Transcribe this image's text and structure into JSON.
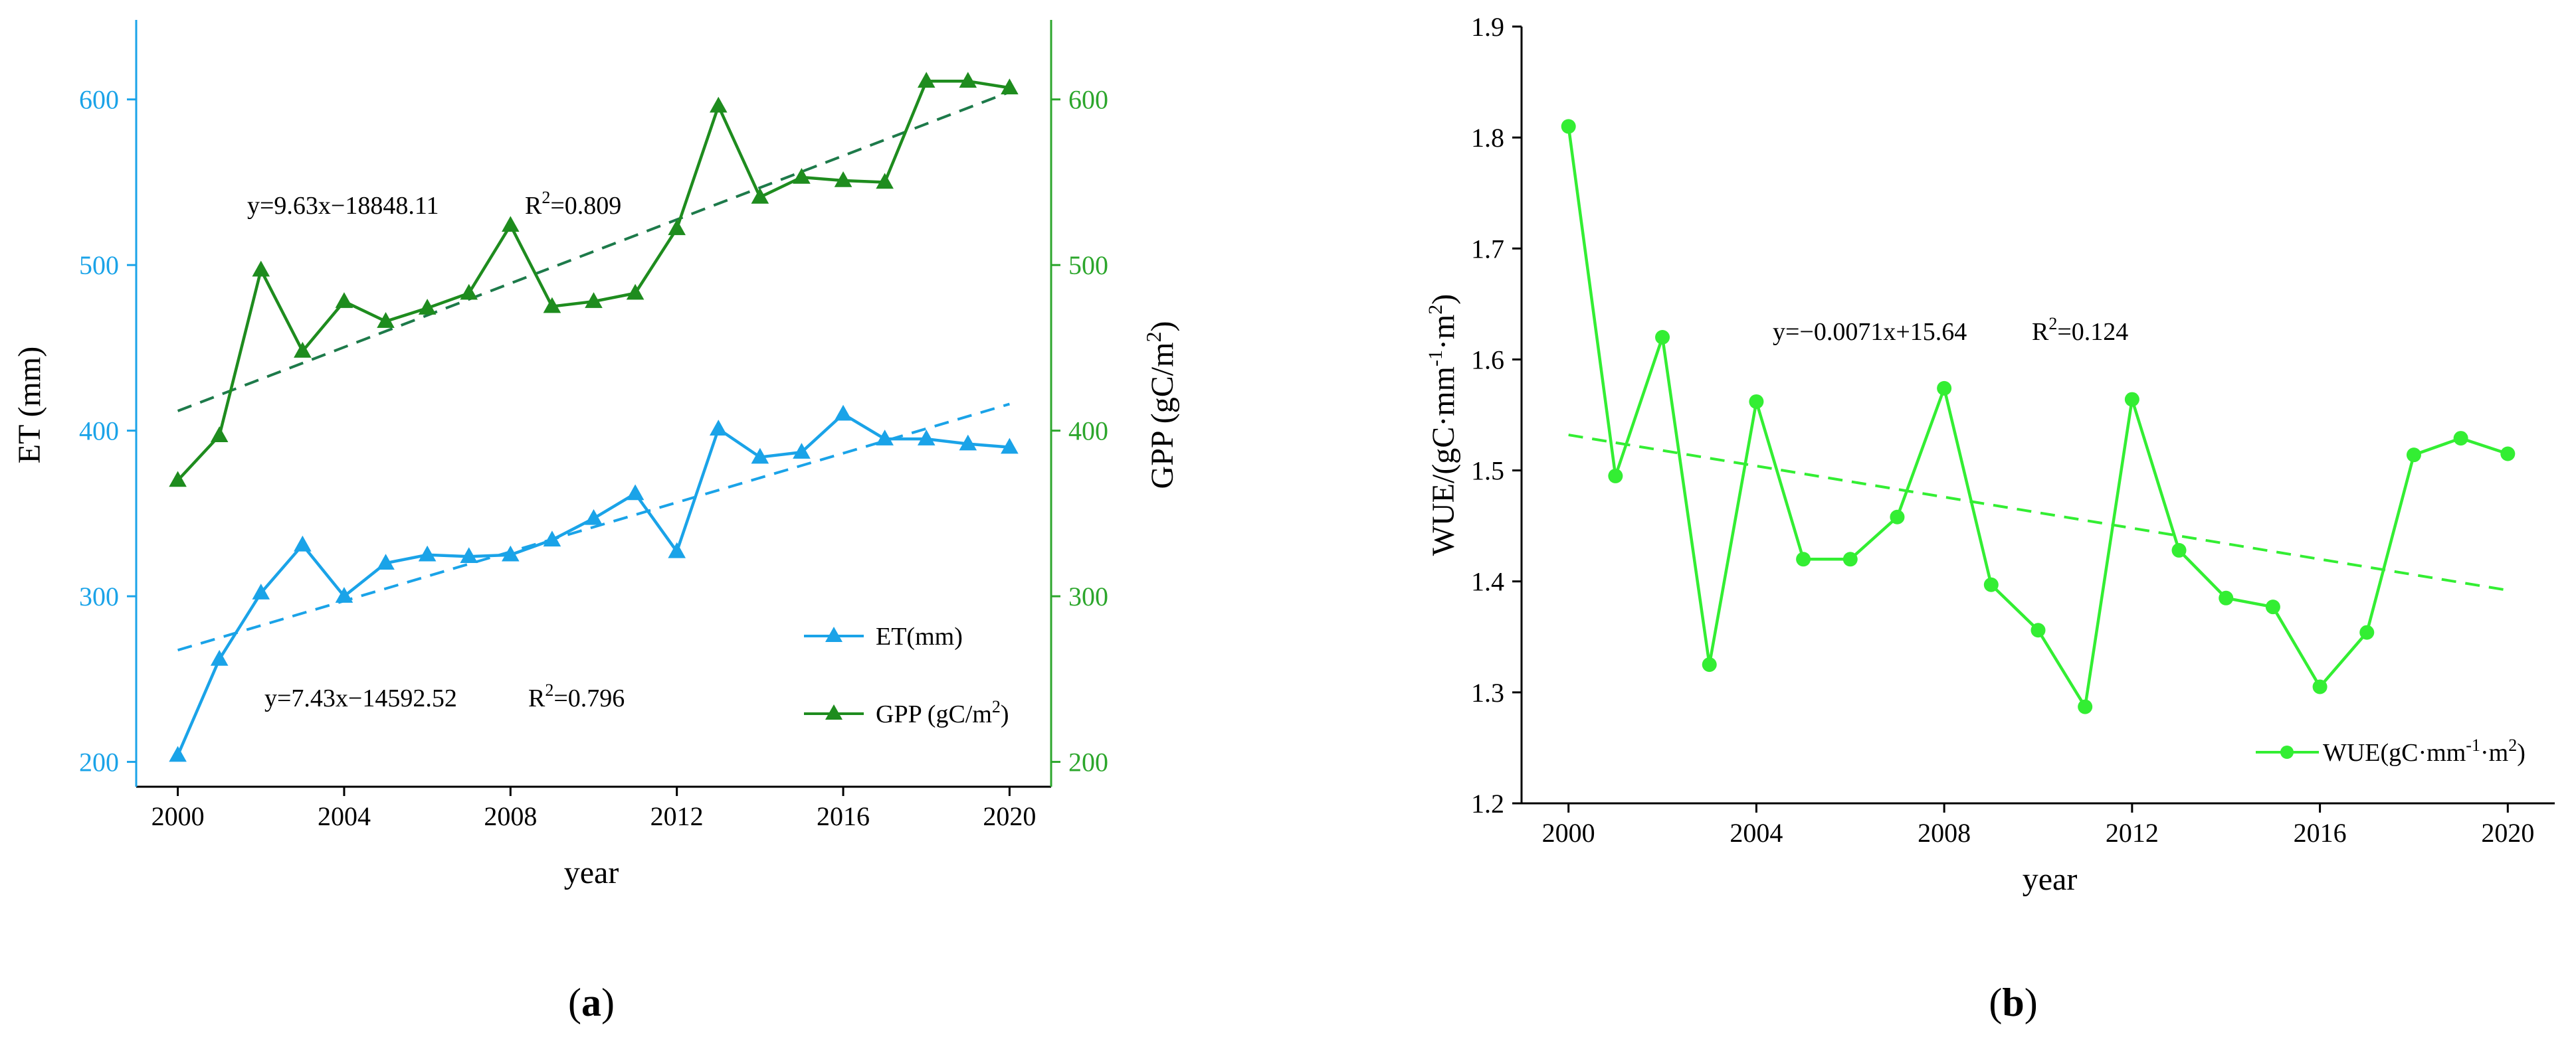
{
  "colors": {
    "et": "#1aa3e8",
    "gpp": "#1e8c1e",
    "gpp_axis": "#2ca62c",
    "gpp_trend": "#1d7a4a",
    "wue": "#33ee33",
    "axis": "#000000"
  },
  "panel_a": {
    "label_prefix": "(",
    "label_letter": "a",
    "label_suffix": ")",
    "x_title": "year",
    "y_left_title": "ET (mm)",
    "y_right_title": "GPP (gC/m",
    "y_right_title_sup": "2",
    "y_right_title_end": ")",
    "annot_gpp_eq": "y=9.63x−18848.11",
    "annot_gpp_r2": "R",
    "annot_gpp_r2_sup": "2",
    "annot_gpp_r2_val": "=0.809",
    "annot_et_eq": "y=7.43x−14592.52",
    "annot_et_r2": "R",
    "annot_et_r2_sup": "2",
    "annot_et_r2_val": "=0.796",
    "legend_et": "ET(mm)",
    "legend_gpp": "GPP (gC/m",
    "legend_gpp_sup": "2",
    "legend_gpp_end": ")"
  },
  "panel_b": {
    "label_prefix": "(",
    "label_letter": "b",
    "label_suffix": ")",
    "x_title": "year",
    "y_title": "WUE/(gC·mm",
    "y_title_sup1": "-1",
    "y_title_mid": "·m",
    "y_title_sup2": "2",
    "y_title_end": ")",
    "annot_eq": "y=−0.0071x+15.64",
    "annot_r2": "R",
    "annot_r2_sup": "2",
    "annot_r2_val": "=0.124",
    "legend": "WUE(gC·mm",
    "legend_sup1": "-1",
    "legend_mid": "·m",
    "legend_sup2": "2",
    "legend_end": ")"
  },
  "chart_data": [
    {
      "type": "line",
      "x": [
        2000,
        2001,
        2002,
        2003,
        2004,
        2005,
        2006,
        2007,
        2008,
        2009,
        2010,
        2011,
        2012,
        2013,
        2014,
        2015,
        2016,
        2017,
        2018,
        2019,
        2020
      ],
      "x_ticks": [
        2000,
        2004,
        2008,
        2012,
        2016,
        2020
      ],
      "xlim": [
        1999,
        2021
      ],
      "xlabel": "year",
      "series": [
        {
          "name": "ET(mm)",
          "axis": "left",
          "marker": "triangle",
          "values": [
            204,
            262,
            302,
            331,
            300,
            320,
            325,
            324,
            325,
            334,
            347,
            362,
            327,
            401,
            384,
            387,
            410,
            395,
            395,
            392,
            390
          ]
        },
        {
          "name": "GPP (gC/m2)",
          "axis": "right",
          "marker": "triangle",
          "values": [
            370,
            397,
            497,
            448,
            478,
            466,
            474,
            483,
            524,
            475,
            478,
            483,
            522,
            596,
            541,
            553,
            551,
            550,
            611,
            611,
            607
          ]
        }
      ],
      "trendlines": [
        {
          "series": "ET(mm)",
          "axis": "left",
          "slope": 7.43,
          "intercept": -14592.52,
          "r2": 0.796
        },
        {
          "series": "GPP (gC/m2)",
          "axis": "right",
          "slope": 9.63,
          "intercept": -18848.11,
          "r2": 0.809
        }
      ],
      "y_left": {
        "label": "ET (mm)",
        "ticks": [
          200,
          300,
          400,
          500,
          600
        ],
        "ylim": [
          185,
          648
        ]
      },
      "y_right": {
        "label": "GPP (gC/m2)",
        "ticks": [
          200,
          300,
          400,
          500,
          600
        ],
        "ylim": [
          185,
          648
        ]
      },
      "legend_position": "bottom-right",
      "grid": false
    },
    {
      "type": "line",
      "x": [
        2000,
        2001,
        2002,
        2003,
        2004,
        2005,
        2006,
        2007,
        2008,
        2009,
        2010,
        2011,
        2012,
        2013,
        2014,
        2015,
        2016,
        2017,
        2018,
        2019,
        2020
      ],
      "x_ticks": [
        2000,
        2004,
        2008,
        2012,
        2016,
        2020
      ],
      "xlim": [
        1999,
        2021
      ],
      "xlabel": "year",
      "series": [
        {
          "name": "WUE(gC·mm-1·m2)",
          "marker": "circle",
          "values": [
            1.81,
            1.495,
            1.62,
            1.325,
            1.562,
            1.42,
            1.42,
            1.458,
            1.574,
            1.397,
            1.356,
            1.287,
            1.564,
            1.428,
            1.385,
            1.377,
            1.305,
            1.354,
            1.514,
            1.529,
            1.515
          ]
        }
      ],
      "trendlines": [
        {
          "series": "WUE(gC·mm-1·m2)",
          "slope": -0.0071,
          "intercept": 15.64,
          "r2": 0.124,
          "start": 1.532,
          "end": 1.392
        }
      ],
      "y": {
        "label": "WUE/(gC·mm-1·m2)",
        "ticks": [
          1.2,
          1.3,
          1.4,
          1.5,
          1.6,
          1.7,
          1.8,
          1.9
        ],
        "ylim": [
          1.2,
          1.9
        ]
      },
      "legend_position": "bottom-right",
      "grid": false
    }
  ]
}
